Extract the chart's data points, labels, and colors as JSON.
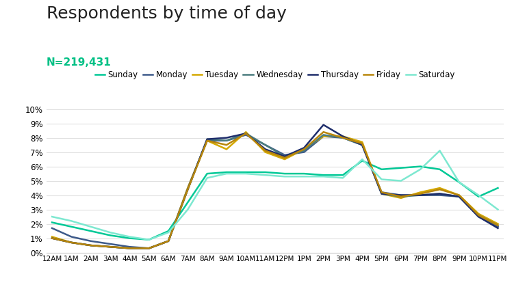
{
  "title": "Respondents by time of day",
  "subtitle": "N=219,431",
  "subtitle_color": "#00c085",
  "title_fontsize": 18,
  "subtitle_fontsize": 11,
  "x_labels": [
    "12AM",
    "1AM",
    "2AM",
    "3AM",
    "4AM",
    "5AM",
    "6AM",
    "7AM",
    "8AM",
    "9AM",
    "10AM",
    "11AM",
    "12PM",
    "1PM",
    "2PM",
    "3PM",
    "4PM",
    "5PM",
    "6PM",
    "7PM",
    "8PM",
    "9PM",
    "10PM",
    "11PM"
  ],
  "series": [
    {
      "name": "Sunday",
      "color": "#00c896",
      "linewidth": 1.8,
      "data": [
        2.1,
        1.8,
        1.5,
        1.2,
        1.0,
        0.9,
        1.5,
        3.5,
        5.5,
        5.6,
        5.6,
        5.6,
        5.5,
        5.5,
        5.4,
        5.4,
        6.4,
        5.8,
        5.9,
        6.0,
        5.8,
        4.9,
        3.9,
        4.5
      ]
    },
    {
      "name": "Monday",
      "color": "#3d5a8a",
      "linewidth": 1.8,
      "data": [
        1.7,
        1.1,
        0.8,
        0.6,
        0.4,
        0.3,
        0.8,
        4.5,
        7.8,
        7.8,
        8.2,
        7.5,
        6.8,
        7.0,
        8.1,
        8.0,
        7.5,
        4.2,
        4.0,
        4.0,
        4.0,
        3.9,
        2.5,
        1.8
      ]
    },
    {
      "name": "Tuesday",
      "color": "#d4a800",
      "linewidth": 1.8,
      "data": [
        1.1,
        0.7,
        0.5,
        0.4,
        0.3,
        0.3,
        0.8,
        4.5,
        7.8,
        7.2,
        8.4,
        7.0,
        6.5,
        7.2,
        8.1,
        8.1,
        7.7,
        4.1,
        3.8,
        4.2,
        4.5,
        4.0,
        2.7,
        2.0
      ]
    },
    {
      "name": "Wednesday",
      "color": "#4a7c7e",
      "linewidth": 1.8,
      "data": [
        1.0,
        0.7,
        0.5,
        0.4,
        0.3,
        0.3,
        0.8,
        4.4,
        7.9,
        7.8,
        8.3,
        7.5,
        6.7,
        7.1,
        8.2,
        8.0,
        7.5,
        4.1,
        3.9,
        4.0,
        4.1,
        3.9,
        2.6,
        1.9
      ]
    },
    {
      "name": "Thursday",
      "color": "#1e2d6b",
      "linewidth": 1.8,
      "data": [
        1.0,
        0.7,
        0.5,
        0.4,
        0.3,
        0.3,
        0.8,
        4.4,
        7.9,
        8.0,
        8.3,
        7.2,
        6.7,
        7.3,
        8.9,
        8.1,
        7.5,
        4.1,
        4.0,
        4.0,
        4.1,
        3.9,
        2.5,
        1.7
      ]
    },
    {
      "name": "Friday",
      "color": "#b8860b",
      "linewidth": 1.8,
      "data": [
        1.0,
        0.7,
        0.5,
        0.4,
        0.3,
        0.3,
        0.8,
        4.4,
        7.8,
        7.5,
        8.3,
        7.1,
        6.6,
        7.2,
        8.4,
        8.0,
        7.6,
        4.2,
        3.9,
        4.1,
        4.4,
        4.0,
        2.6,
        1.9
      ]
    },
    {
      "name": "Saturday",
      "color": "#7de8d0",
      "linewidth": 1.8,
      "data": [
        2.5,
        2.2,
        1.8,
        1.4,
        1.1,
        0.9,
        1.4,
        3.0,
        5.2,
        5.5,
        5.5,
        5.4,
        5.3,
        5.3,
        5.3,
        5.2,
        6.5,
        5.1,
        5.0,
        5.8,
        7.1,
        4.9,
        4.0,
        3.0
      ]
    }
  ],
  "ylim": [
    0,
    10
  ],
  "yticks": [
    0,
    1,
    2,
    3,
    4,
    5,
    6,
    7,
    8,
    9,
    10
  ],
  "background_color": "#ffffff",
  "grid_color": "#e0e0e0"
}
